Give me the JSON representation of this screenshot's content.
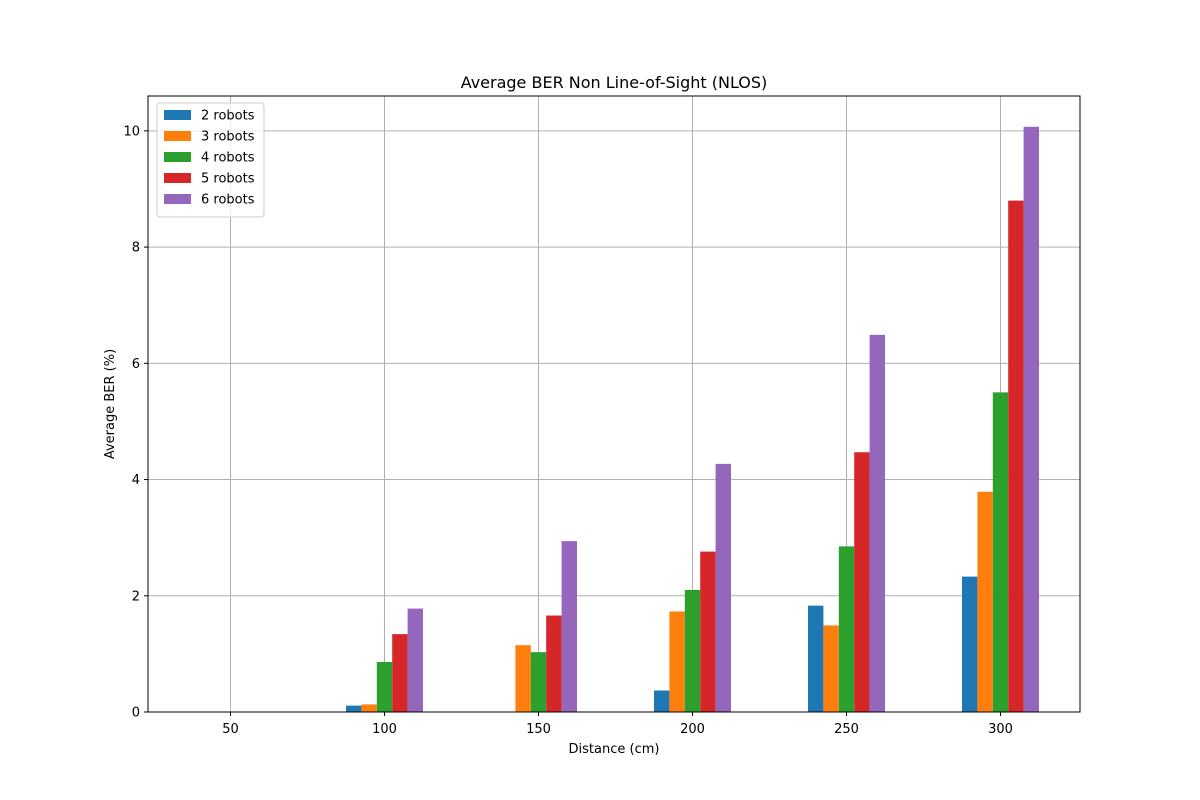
{
  "chart_data": {
    "type": "bar",
    "title": "Average BER Non Line-of-Sight (NLOS)",
    "xlabel": "Distance (cm)",
    "ylabel": "Average BER (%)",
    "categories": [
      "50",
      "100",
      "150",
      "200",
      "250",
      "300"
    ],
    "y_ticks": [
      "0",
      "2",
      "4",
      "6",
      "8",
      "10"
    ],
    "ylim": [
      0,
      10.6
    ],
    "grid": true,
    "legend_position": "upper-left",
    "series": [
      {
        "name": "2 robots",
        "color": "#1f77b4",
        "values": [
          0,
          0.11,
          0,
          0.37,
          1.83,
          2.33
        ]
      },
      {
        "name": "3 robots",
        "color": "#ff7f0e",
        "values": [
          0,
          0.13,
          1.15,
          1.73,
          1.49,
          3.79
        ]
      },
      {
        "name": "4 robots",
        "color": "#2ca02c",
        "values": [
          0,
          0.86,
          1.03,
          2.1,
          2.85,
          5.5
        ]
      },
      {
        "name": "5 robots",
        "color": "#d62728",
        "values": [
          0,
          1.34,
          1.66,
          2.76,
          4.47,
          8.8
        ]
      },
      {
        "name": "6 robots",
        "color": "#9467bd",
        "values": [
          0,
          1.78,
          2.94,
          4.27,
          6.49,
          10.07
        ]
      }
    ]
  }
}
